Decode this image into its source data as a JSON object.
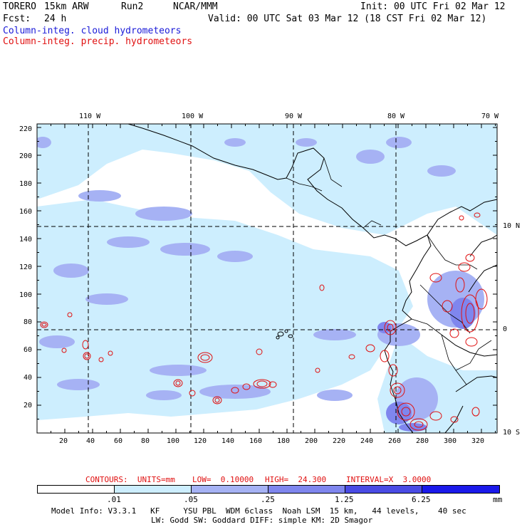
{
  "header": {
    "model": "TORERO",
    "resolution": "15km ARW",
    "run": "Run2",
    "org": "NCAR/MMM",
    "init": "Init: 00 UTC Fri 02 Mar 12",
    "fcst_label": "Fcst:",
    "fcst_value": "24 h",
    "valid": "Valid: 00 UTC Sat 03 Mar 12 (18 CST Fri 02 Mar 12)",
    "field1": "Column-integ. cloud hydrometeors",
    "field2": "Column-integ. precip. hydrometeors"
  },
  "colors": {
    "field1": "#1a1ad8",
    "field2": "#e01010",
    "shade_levels": [
      "#ffffff",
      "#cdeefe",
      "#a6b2f4",
      "#7f86ee",
      "#4a4be4",
      "#1a19ea"
    ]
  },
  "map": {
    "lon_labels": [
      "110 W",
      "100 W",
      "90 W",
      "80 W",
      "70 W"
    ],
    "lat_labels": [
      "10 N",
      "0",
      "10 S"
    ],
    "y_ticks": [
      "220",
      "200",
      "180",
      "160",
      "140",
      "120",
      "100",
      "80",
      "60",
      "40",
      "20"
    ],
    "x_ticks": [
      "20",
      "40",
      "60",
      "80",
      "100",
      "120",
      "140",
      "160",
      "180",
      "200",
      "220",
      "240",
      "260",
      "280",
      "300",
      "320"
    ]
  },
  "contours": {
    "units_label": "CONTOURS:  UNITS=mm",
    "low": "LOW=  0.10000",
    "high": "HIGH=  24.300",
    "interval": "INTERVAL=X  3.0000"
  },
  "colorbar": {
    "values": [
      ".01",
      ".05",
      ".25",
      "1.25",
      "6.25"
    ],
    "unit": "mm"
  },
  "footer": {
    "line1": "Model Info: V3.3.1   KF     YSU PBL  WDM 6class  Noah LSM  15 km,   44 levels,    40 sec",
    "line2": "LW: Godd SW: Goddard DIFF: simple KM: 2D Smagor"
  }
}
